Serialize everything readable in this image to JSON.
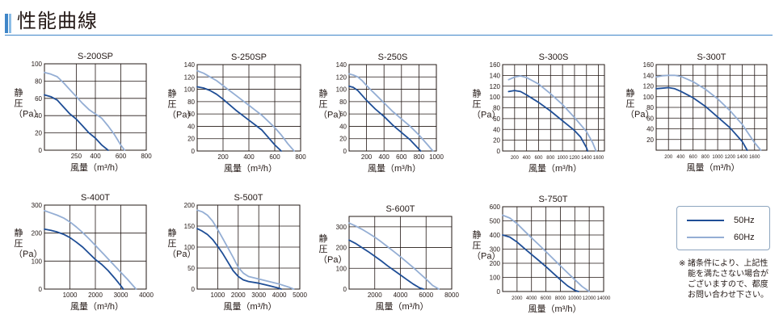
{
  "page_title": "性能曲線",
  "colors": {
    "hz50": "#1f4e96",
    "hz60": "#94aed4",
    "accent": "#3f86c8"
  },
  "legend": [
    {
      "label": "50Hz",
      "color": "#1f4e96"
    },
    {
      "label": "60Hz",
      "color": "#94aed4"
    }
  ],
  "note": {
    "mark": "※",
    "text": "諸条件により、上記性能を満たさない場合がございますので、都度お問い合わせ下さい。"
  },
  "chart_data": [
    {
      "type": "line",
      "title": "S-200SP",
      "xlabel": "風量（m³/h）",
      "ylabel": [
        "静",
        "圧",
        "（Pa）"
      ],
      "xlim": [
        0,
        800
      ],
      "ylim": [
        0,
        100
      ],
      "xticks": [
        250,
        400,
        600,
        800
      ],
      "yticks": [
        0,
        20,
        40,
        60,
        80,
        100
      ],
      "series": [
        {
          "name": "50Hz",
          "x": [
            0,
            50,
            100,
            150,
            200,
            250,
            300,
            350,
            400,
            450,
            500
          ],
          "y": [
            64,
            62,
            58,
            50,
            42,
            36,
            28,
            20,
            14,
            6,
            0
          ]
        },
        {
          "name": "60Hz",
          "x": [
            0,
            50,
            100,
            150,
            200,
            250,
            300,
            350,
            400,
            450,
            500,
            550,
            600,
            630
          ],
          "y": [
            90,
            88,
            85,
            78,
            70,
            62,
            54,
            47,
            42,
            37,
            28,
            18,
            6,
            0
          ]
        }
      ]
    },
    {
      "type": "line",
      "title": "S-250SP",
      "xlabel": "風量（m³/h）",
      "ylabel": [
        "静",
        "圧",
        "（Pa）"
      ],
      "xlim": [
        0,
        800
      ],
      "ylim": [
        0,
        140
      ],
      "xticks": [
        200,
        400,
        600,
        800
      ],
      "yticks": [
        0,
        20,
        40,
        60,
        80,
        100,
        120,
        140
      ],
      "series": [
        {
          "name": "50Hz",
          "x": [
            0,
            50,
            100,
            150,
            200,
            250,
            300,
            350,
            400,
            450,
            500,
            550,
            600,
            650
          ],
          "y": [
            104,
            102,
            98,
            92,
            84,
            75,
            66,
            58,
            50,
            42,
            34,
            22,
            10,
            0
          ]
        },
        {
          "name": "60Hz",
          "x": [
            0,
            50,
            100,
            150,
            200,
            250,
            300,
            350,
            400,
            450,
            500,
            550,
            600,
            650,
            700,
            750
          ],
          "y": [
            130,
            126,
            120,
            114,
            106,
            98,
            90,
            82,
            74,
            66,
            58,
            48,
            38,
            26,
            12,
            0
          ]
        }
      ]
    },
    {
      "type": "line",
      "title": "S-250S",
      "xlabel": "風量（m³/h）",
      "ylabel": [
        "静",
        "圧",
        "（Pa）"
      ],
      "xlim": [
        0,
        1000
      ],
      "ylim": [
        0,
        140
      ],
      "xticks": [
        200,
        400,
        600,
        800,
        1000
      ],
      "yticks": [
        0,
        20,
        40,
        60,
        80,
        100,
        120,
        140
      ],
      "series": [
        {
          "name": "50Hz",
          "x": [
            0,
            50,
            100,
            150,
            200,
            300,
            400,
            500,
            600,
            700,
            780,
            820
          ],
          "y": [
            105,
            103,
            98,
            90,
            82,
            68,
            56,
            42,
            30,
            18,
            6,
            0
          ]
        },
        {
          "name": "60Hz",
          "x": [
            0,
            50,
            100,
            150,
            200,
            300,
            400,
            500,
            600,
            700,
            800,
            900,
            960
          ],
          "y": [
            125,
            123,
            120,
            114,
            106,
            92,
            78,
            64,
            52,
            40,
            26,
            10,
            0
          ]
        }
      ]
    },
    {
      "type": "line",
      "title": "S-300S",
      "xlabel": "風量（m³/h）",
      "ylabel": [
        "静",
        "圧",
        "（Pa）"
      ],
      "xlim": [
        0,
        1700
      ],
      "ylim": [
        0,
        160
      ],
      "xticks": [
        200,
        400,
        600,
        800,
        1000,
        1200,
        1400,
        1600
      ],
      "yticks": [
        0,
        20,
        40,
        60,
        80,
        100,
        120,
        140,
        160
      ],
      "series": [
        {
          "name": "50Hz",
          "x": [
            100,
            200,
            300,
            400,
            600,
            800,
            1000,
            1200,
            1300,
            1400,
            1420
          ],
          "y": [
            110,
            112,
            110,
            104,
            90,
            74,
            56,
            38,
            26,
            6,
            0
          ]
        },
        {
          "name": "60Hz",
          "x": [
            100,
            200,
            300,
            400,
            600,
            800,
            1000,
            1200,
            1400,
            1500,
            1560
          ],
          "y": [
            132,
            137,
            139,
            136,
            124,
            106,
            86,
            62,
            36,
            16,
            0
          ]
        }
      ]
    },
    {
      "type": "line",
      "title": "S-300T",
      "xlabel": "風量（m³/h）",
      "ylabel": [
        "静",
        "圧",
        "（Pa）"
      ],
      "xlim": [
        0,
        1800
      ],
      "ylim": [
        0,
        160
      ],
      "xticks": [
        200,
        400,
        600,
        800,
        1000,
        1200,
        1400,
        1600
      ],
      "yticks": [
        20,
        40,
        60,
        80,
        100,
        120,
        140,
        160
      ],
      "series": [
        {
          "name": "50Hz",
          "x": [
            0,
            100,
            200,
            300,
            400,
            600,
            800,
            1000,
            1200,
            1400,
            1480
          ],
          "y": [
            115,
            116,
            117,
            115,
            110,
            98,
            82,
            62,
            42,
            16,
            0
          ]
        },
        {
          "name": "60Hz",
          "x": [
            0,
            100,
            200,
            300,
            400,
            600,
            800,
            1000,
            1200,
            1400,
            1600,
            1700
          ],
          "y": [
            137,
            139,
            140,
            140,
            138,
            128,
            114,
            96,
            74,
            48,
            14,
            0
          ]
        }
      ]
    },
    {
      "type": "line",
      "title": "S-400T",
      "xlabel": "風量（m³/h）",
      "ylabel": [
        "静",
        "圧",
        "（Pa）"
      ],
      "xlim": [
        0,
        4000
      ],
      "ylim": [
        0,
        300
      ],
      "xticks": [
        1000,
        2000,
        3000,
        4000
      ],
      "yticks": [
        0,
        100,
        200,
        300
      ],
      "series": [
        {
          "name": "50Hz",
          "x": [
            0,
            250,
            500,
            750,
            1000,
            1250,
            1500,
            1750,
            2000,
            2250,
            2500,
            2750,
            3000,
            3100
          ],
          "y": [
            214,
            210,
            204,
            196,
            184,
            168,
            150,
            128,
            106,
            88,
            66,
            40,
            12,
            0
          ]
        },
        {
          "name": "60Hz",
          "x": [
            0,
            250,
            500,
            750,
            1000,
            1250,
            1500,
            1750,
            2000,
            2250,
            2500,
            2750,
            3000,
            3250,
            3500,
            3600
          ],
          "y": [
            280,
            272,
            264,
            254,
            240,
            222,
            202,
            180,
            156,
            132,
            108,
            84,
            60,
            36,
            10,
            0
          ]
        }
      ]
    },
    {
      "type": "line",
      "title": "S-500T",
      "xlabel": "風量（m³/h）",
      "ylabel": [
        "静",
        "圧",
        "（Pa）"
      ],
      "xlim": [
        0,
        5000
      ],
      "ylim": [
        0,
        200
      ],
      "xticks": [
        1000,
        2000,
        3000,
        4000,
        5000
      ],
      "yticks": [
        0,
        50,
        100,
        150,
        200
      ],
      "series": [
        {
          "name": "50Hz",
          "x": [
            0,
            250,
            500,
            750,
            1000,
            1250,
            1500,
            1750,
            2000,
            2250,
            2500,
            3000,
            3500,
            4000,
            4100
          ],
          "y": [
            144,
            138,
            130,
            118,
            102,
            84,
            64,
            44,
            30,
            22,
            18,
            14,
            8,
            2,
            0
          ]
        },
        {
          "name": "60Hz",
          "x": [
            0,
            250,
            500,
            750,
            1000,
            1250,
            1500,
            1750,
            2000,
            2250,
            2500,
            3000,
            3500,
            4000,
            4500,
            4700
          ],
          "y": [
            188,
            184,
            176,
            162,
            142,
            120,
            98,
            76,
            52,
            38,
            30,
            24,
            18,
            12,
            4,
            0
          ]
        }
      ]
    },
    {
      "type": "line",
      "title": "S-600T",
      "xlabel": "風量（m³/h）",
      "ylabel": [
        "静",
        "圧",
        "（Pa）"
      ],
      "xlim": [
        0,
        8000
      ],
      "ylim": [
        0,
        350
      ],
      "xticks": [
        2000,
        4000,
        6000,
        8000
      ],
      "yticks": [
        0,
        100,
        200,
        300
      ],
      "series": [
        {
          "name": "50Hz",
          "x": [
            0,
            500,
            1000,
            1500,
            2000,
            2500,
            3000,
            3500,
            4000,
            4500,
            5000,
            5500,
            5800
          ],
          "y": [
            236,
            220,
            200,
            180,
            158,
            136,
            112,
            90,
            68,
            46,
            24,
            6,
            0
          ]
        },
        {
          "name": "60Hz",
          "x": [
            0,
            500,
            1000,
            1500,
            2000,
            2500,
            3000,
            3500,
            4000,
            4500,
            5000,
            5500,
            6000,
            6500,
            7000
          ],
          "y": [
            318,
            304,
            288,
            270,
            250,
            228,
            204,
            180,
            156,
            130,
            104,
            76,
            48,
            18,
            0
          ]
        }
      ]
    },
    {
      "type": "line",
      "title": "S-750T",
      "xlabel": "風量（m³/h）",
      "ylabel": [
        "静",
        "圧",
        "（Pa）"
      ],
      "xlim": [
        0,
        14000
      ],
      "ylim": [
        0,
        600
      ],
      "xticks": [
        2000,
        4000,
        6000,
        8000,
        10000,
        12000,
        14000
      ],
      "yticks": [
        0,
        100,
        200,
        300,
        400,
        500,
        600
      ],
      "series": [
        {
          "name": "50Hz",
          "x": [
            0,
            1000,
            2000,
            3000,
            4000,
            5000,
            6000,
            7000,
            8000,
            9000,
            10000,
            10500
          ],
          "y": [
            400,
            385,
            350,
            305,
            262,
            220,
            176,
            130,
            84,
            40,
            8,
            0
          ]
        },
        {
          "name": "60Hz",
          "x": [
            0,
            1000,
            2000,
            3000,
            4000,
            5000,
            6000,
            7000,
            8000,
            9000,
            10000,
            11000,
            12000
          ],
          "y": [
            540,
            520,
            480,
            430,
            380,
            332,
            282,
            232,
            182,
            132,
            84,
            36,
            0
          ]
        }
      ]
    }
  ]
}
